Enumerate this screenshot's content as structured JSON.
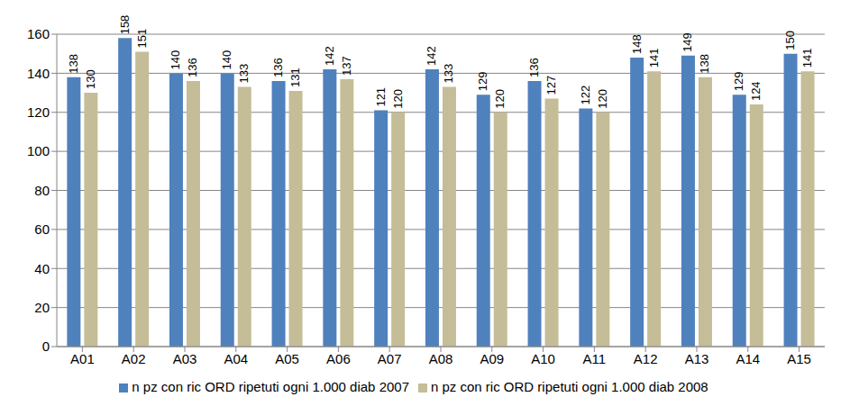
{
  "chart_data": {
    "type": "bar",
    "categories": [
      "A01",
      "A02",
      "A03",
      "A04",
      "A05",
      "A06",
      "A07",
      "A08",
      "A09",
      "A10",
      "A11",
      "A12",
      "A13",
      "A14",
      "A15"
    ],
    "series": [
      {
        "name": "n pz con ric ORD  ripetuti ogni 1.000 diab 2007",
        "color": "#4f81bd",
        "values": [
          138,
          158,
          140,
          140,
          136,
          142,
          121,
          142,
          129,
          136,
          122,
          148,
          149,
          129,
          150
        ]
      },
      {
        "name": "n pz con ric ORD  ripetuti ogni 1.000 diab 2008",
        "color": "#c4bd97",
        "values": [
          130,
          151,
          136,
          133,
          131,
          137,
          120,
          133,
          120,
          127,
          120,
          141,
          138,
          124,
          141
        ]
      }
    ],
    "ylim": [
      0,
      160
    ],
    "yticks": [
      0,
      20,
      40,
      60,
      80,
      100,
      120,
      140,
      160
    ],
    "grid": true,
    "data_labels": true,
    "legend": "bottom"
  }
}
